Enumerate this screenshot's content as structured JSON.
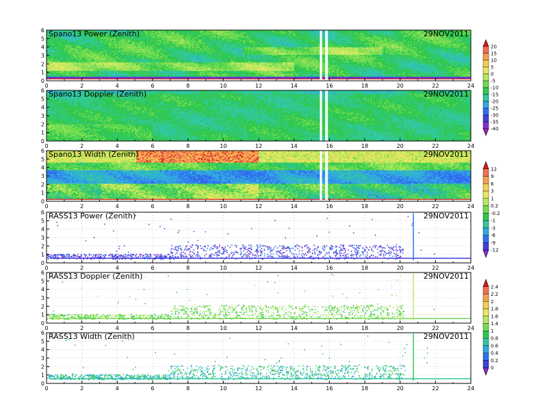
{
  "chart_data": {
    "type": "heatmap",
    "date": "29NOV2011",
    "x_range": [
      0,
      24
    ],
    "x_ticks": [
      0,
      2,
      4,
      6,
      8,
      10,
      12,
      14,
      16,
      18,
      20,
      22,
      24
    ],
    "y_range": [
      0,
      6
    ],
    "y_ticks": [
      0,
      1,
      2,
      3,
      4,
      5,
      6
    ],
    "grid": true,
    "panels": [
      {
        "title": "Spano13 Power (Zenith)",
        "date": "29NOV2011",
        "kind": "dense",
        "field": "power",
        "colorbar": "power"
      },
      {
        "title": "Spano13 Doppler (Zenith)",
        "date": "29NOV2011",
        "kind": "dense",
        "field": "doppler",
        "colorbar": "power"
      },
      {
        "title": "Spano13 Width (Zenith)",
        "date": "29NOV2011",
        "kind": "dense",
        "field": "width",
        "colorbar": "width"
      },
      {
        "title": "RASS13 Power (Zenith)",
        "date": "29NOV2011",
        "kind": "sparse",
        "field": "rpower",
        "colorbar": "width"
      },
      {
        "title": "RASS13 Doppler (Zenith)",
        "date": "29NOV2011",
        "kind": "sparse",
        "field": "rdoppler",
        "colorbar": "rass"
      },
      {
        "title": "RASS13 Width (Zenith)",
        "date": "29NOV2011",
        "kind": "sparse",
        "field": "rwidth",
        "colorbar": "rass"
      }
    ],
    "colorbars": [
      {
        "id": "power",
        "labels": [
          "20",
          "15",
          "10",
          "5",
          "0",
          "-5",
          "-10",
          "-15",
          "-20",
          "-25",
          "-30",
          "-35",
          "-40"
        ],
        "colors": [
          "#d7191c",
          "#f07050",
          "#f5a050",
          "#f5d050",
          "#e8e860",
          "#b8e860",
          "#70dc50",
          "#30c850",
          "#30c8a0",
          "#30a8e0",
          "#3070f0",
          "#4040d8",
          "#8030d0",
          "#a020c0"
        ]
      },
      {
        "id": "width",
        "labels": [
          "12",
          "9",
          "6",
          "3",
          "1",
          "0.2",
          "-0.2",
          "-1",
          "-3",
          "-6",
          "-9",
          "-12"
        ],
        "colors": [
          "#d7191c",
          "#f07050",
          "#f5a050",
          "#f5d050",
          "#e8e860",
          "#b8e860",
          "#70dc50",
          "#30c850",
          "#30c8a0",
          "#30a8e0",
          "#3070f0",
          "#4040d8",
          "#8030d0"
        ]
      },
      {
        "id": "rass",
        "labels": [
          "2.4",
          "2.2",
          "2",
          "1.8",
          "1.6",
          "1.4",
          "1",
          "0.8",
          "0.6",
          "0.4",
          "0.2",
          "0"
        ],
        "colors": [
          "#d7191c",
          "#f07050",
          "#f5a050",
          "#f5d050",
          "#e8e860",
          "#b8e860",
          "#70dc50",
          "#30c850",
          "#30c8a0",
          "#30a8e0",
          "#3070f0",
          "#4040d8",
          "#8030d0"
        ]
      }
    ]
  }
}
